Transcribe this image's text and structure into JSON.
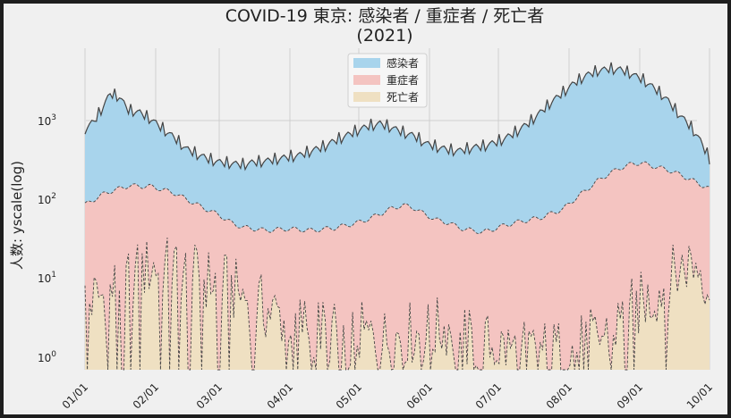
{
  "chart_data": {
    "type": "area",
    "title": "COVID-19 東京: 感染者 / 重症者 / 死亡者",
    "subtitle": "(2021)",
    "xlabel": "",
    "ylabel": "人数: yscale(log)",
    "yscale": "log",
    "ylim": [
      0.7,
      9000
    ],
    "x_ticks": [
      "01/01",
      "02/01",
      "03/01",
      "04/01",
      "05/01",
      "06/01",
      "07/01",
      "08/01",
      "09/01",
      "10/01"
    ],
    "y_ticks": [
      {
        "value": 1,
        "base": "10",
        "exp": "0"
      },
      {
        "value": 10,
        "base": "10",
        "exp": "1"
      },
      {
        "value": 100,
        "base": "10",
        "exp": "2"
      },
      {
        "value": 1000,
        "base": "10",
        "exp": "3"
      }
    ],
    "grid": true,
    "legend_position": "top-center",
    "series": [
      {
        "name": "感染者",
        "color": "#a8d4ec",
        "anchors": [
          [
            1,
            800
          ],
          [
            5,
            1000
          ],
          [
            8,
            1400
          ],
          [
            12,
            2300
          ],
          [
            16,
            2100
          ],
          [
            20,
            1400
          ],
          [
            25,
            1300
          ],
          [
            30,
            1050
          ],
          [
            35,
            800
          ],
          [
            40,
            620
          ],
          [
            45,
            450
          ],
          [
            50,
            380
          ],
          [
            55,
            330
          ],
          [
            60,
            300
          ],
          [
            65,
            290
          ],
          [
            70,
            280
          ],
          [
            75,
            300
          ],
          [
            80,
            310
          ],
          [
            85,
            330
          ],
          [
            90,
            350
          ],
          [
            95,
            370
          ],
          [
            100,
            420
          ],
          [
            105,
            470
          ],
          [
            110,
            560
          ],
          [
            115,
            650
          ],
          [
            120,
            760
          ],
          [
            125,
            870
          ],
          [
            130,
            930
          ],
          [
            135,
            830
          ],
          [
            140,
            720
          ],
          [
            145,
            650
          ],
          [
            150,
            520
          ],
          [
            155,
            470
          ],
          [
            160,
            430
          ],
          [
            165,
            420
          ],
          [
            170,
            460
          ],
          [
            175,
            480
          ],
          [
            180,
            530
          ],
          [
            185,
            610
          ],
          [
            190,
            750
          ],
          [
            195,
            950
          ],
          [
            200,
            1300
          ],
          [
            205,
            1800
          ],
          [
            210,
            2400
          ],
          [
            215,
            3200
          ],
          [
            220,
            4000
          ],
          [
            225,
            4600
          ],
          [
            230,
            4900
          ],
          [
            235,
            4800
          ],
          [
            240,
            4200
          ],
          [
            245,
            3500
          ],
          [
            250,
            2700
          ],
          [
            255,
            2000
          ],
          [
            260,
            1300
          ],
          [
            265,
            900
          ],
          [
            268,
            700
          ],
          [
            271,
            500
          ],
          [
            274,
            330
          ]
        ],
        "amp": 0.17
      },
      {
        "name": "重症者",
        "color": "#f4c4c1",
        "anchors": [
          [
            1,
            85
          ],
          [
            10,
            120
          ],
          [
            20,
            148
          ],
          [
            30,
            145
          ],
          [
            40,
            120
          ],
          [
            50,
            85
          ],
          [
            60,
            62
          ],
          [
            65,
            50
          ],
          [
            70,
            44
          ],
          [
            80,
            40
          ],
          [
            90,
            42
          ],
          [
            100,
            40
          ],
          [
            110,
            43
          ],
          [
            120,
            50
          ],
          [
            125,
            56
          ],
          [
            130,
            65
          ],
          [
            135,
            76
          ],
          [
            140,
            84
          ],
          [
            145,
            77
          ],
          [
            150,
            63
          ],
          [
            155,
            54
          ],
          [
            160,
            50
          ],
          [
            165,
            43
          ],
          [
            170,
            40
          ],
          [
            175,
            38
          ],
          [
            180,
            42
          ],
          [
            185,
            47
          ],
          [
            190,
            51
          ],
          [
            200,
            58
          ],
          [
            210,
            75
          ],
          [
            215,
            100
          ],
          [
            220,
            130
          ],
          [
            225,
            170
          ],
          [
            230,
            210
          ],
          [
            235,
            250
          ],
          [
            240,
            280
          ],
          [
            244,
            290
          ],
          [
            250,
            260
          ],
          [
            256,
            235
          ],
          [
            262,
            200
          ],
          [
            268,
            165
          ],
          [
            274,
            135
          ]
        ],
        "amp": 0.03
      },
      {
        "name": "死亡者",
        "color": "#efe0c2",
        "anchors": [
          [
            1,
            5
          ],
          [
            10,
            6
          ],
          [
            20,
            10
          ],
          [
            30,
            14
          ],
          [
            40,
            13
          ],
          [
            50,
            10
          ],
          [
            60,
            9
          ],
          [
            70,
            6
          ],
          [
            80,
            4
          ],
          [
            90,
            3
          ],
          [
            100,
            2.5
          ],
          [
            110,
            2
          ],
          [
            120,
            2
          ],
          [
            130,
            1.6
          ],
          [
            140,
            2
          ],
          [
            150,
            2
          ],
          [
            160,
            2.5
          ],
          [
            170,
            1.5
          ],
          [
            180,
            1.4
          ],
          [
            190,
            1.2
          ],
          [
            200,
            1.2
          ],
          [
            210,
            1.2
          ],
          [
            220,
            1.5
          ],
          [
            230,
            2
          ],
          [
            240,
            4
          ],
          [
            250,
            6
          ],
          [
            260,
            12
          ],
          [
            265,
            16
          ],
          [
            270,
            14
          ],
          [
            274,
            8
          ]
        ],
        "amp": 0.42
      }
    ]
  }
}
